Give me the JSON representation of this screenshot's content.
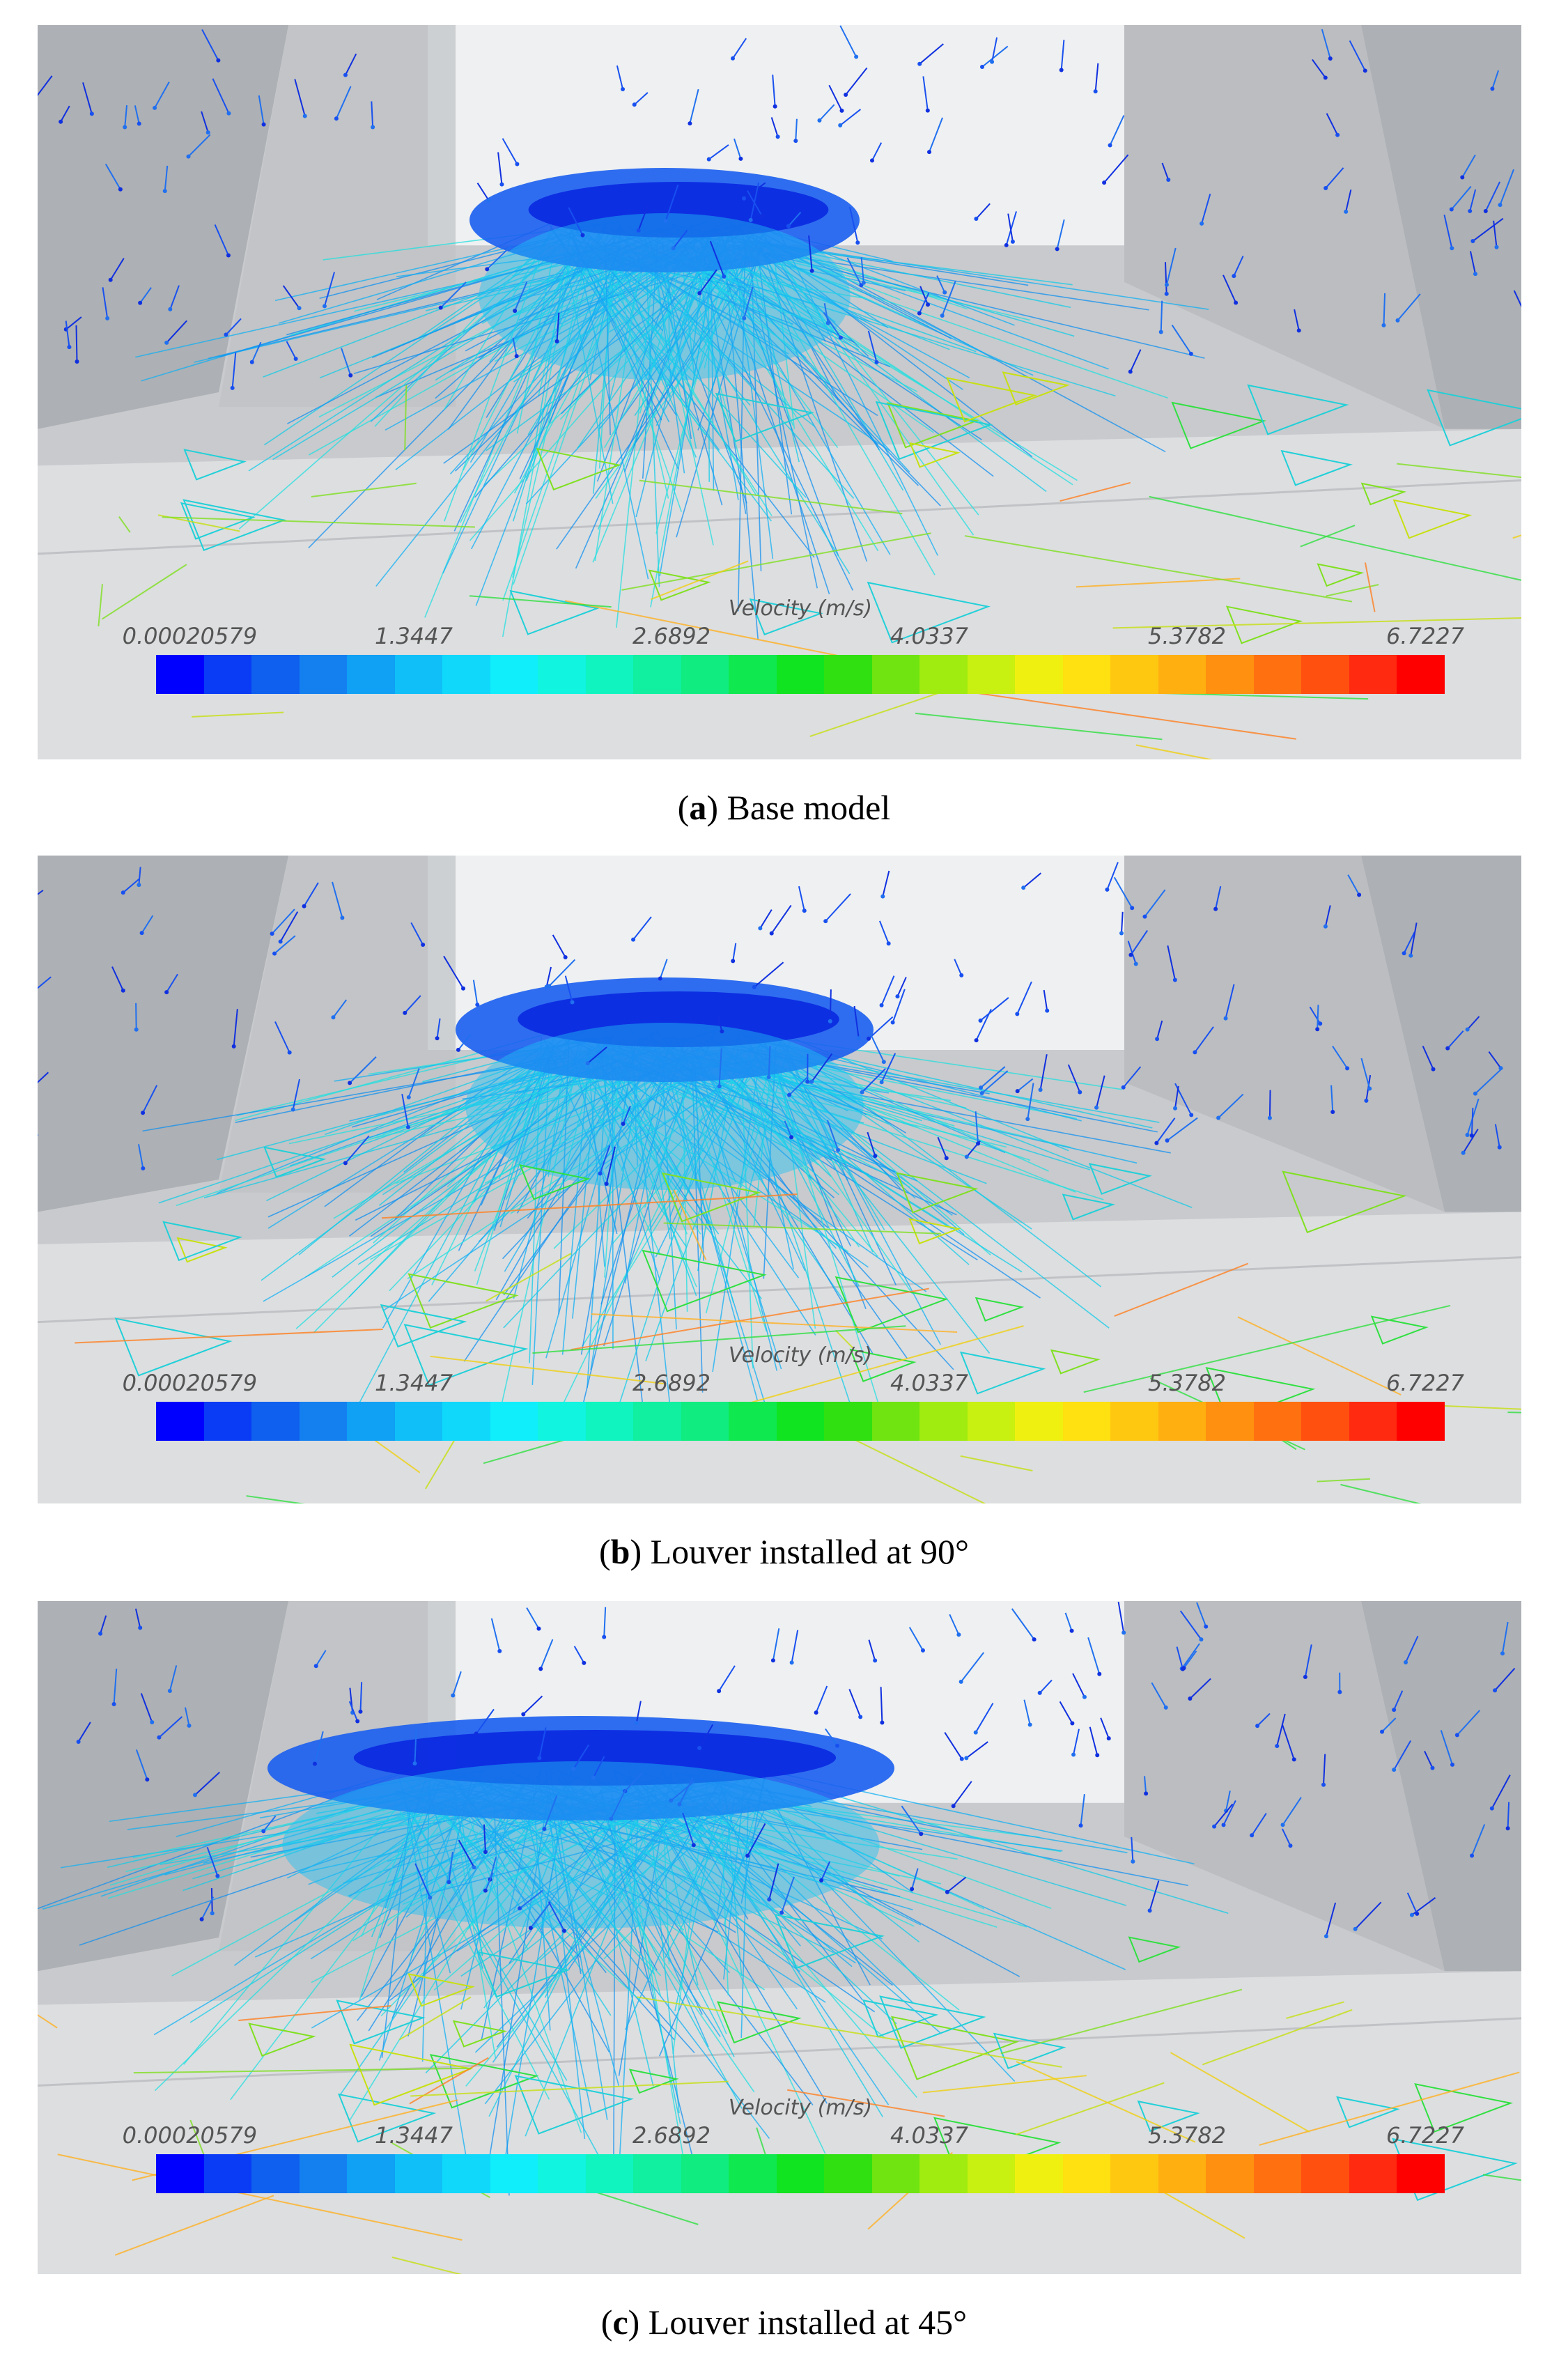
{
  "figure": {
    "panels": [
      {
        "caption_letter": "a",
        "caption_text": ") Base model"
      },
      {
        "caption_letter": "b",
        "caption_text": ") Louver installed at 90°"
      },
      {
        "caption_letter": "c",
        "caption_text": ") Louver installed at 45°"
      }
    ],
    "legend": {
      "title": "Velocity (m/s)",
      "ticks": [
        "0.00020579",
        "1.3447",
        "2.6892",
        "4.0337",
        "5.3782",
        "6.7227"
      ],
      "colors": [
        "#0000ff",
        "#0a3cf5",
        "#1060f0",
        "#1480f0",
        "#10a0f4",
        "#10bff8",
        "#10d8fa",
        "#10eefc",
        "#10f4e0",
        "#10f4c0",
        "#10f0a0",
        "#10ec80",
        "#10e850",
        "#10e420",
        "#30e010",
        "#70e410",
        "#a0ec10",
        "#c8f010",
        "#f0f010",
        "#ffe010",
        "#ffc810",
        "#ffb010",
        "#ff9010",
        "#ff7010",
        "#ff5010",
        "#ff2a10",
        "#ff0000"
      ]
    }
  }
}
